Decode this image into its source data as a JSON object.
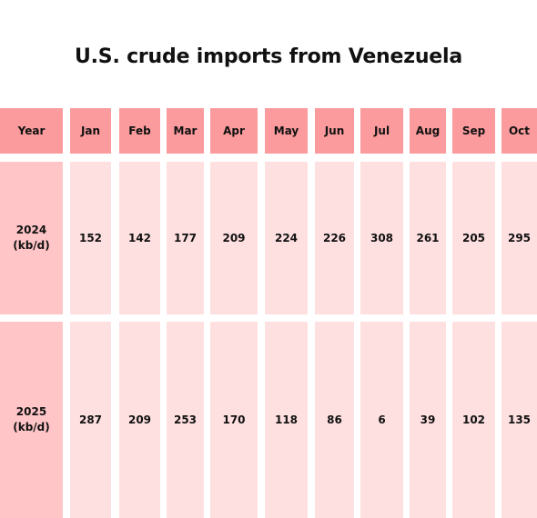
{
  "chart_data": {
    "type": "table",
    "title": "U.S. crude imports from Venezuela",
    "header_label": "Year",
    "columns": [
      "Jan",
      "Feb",
      "Mar",
      "Apr",
      "May",
      "Jun",
      "Jul",
      "Aug",
      "Sep",
      "Oct"
    ],
    "rows": [
      {
        "label_line1": "2024",
        "label_line2": "(kb/d)",
        "values": [
          152,
          142,
          177,
          209,
          224,
          226,
          308,
          261,
          205,
          295
        ]
      },
      {
        "label_line1": "2025",
        "label_line2": "(kb/d)",
        "values": [
          287,
          209,
          253,
          170,
          118,
          86,
          6,
          39,
          102,
          135
        ]
      }
    ]
  },
  "colors": {
    "header_bg": "#fb9b9d",
    "row_label_bg": "#ffc5c7",
    "value_bg": "#ffe0e1"
  }
}
